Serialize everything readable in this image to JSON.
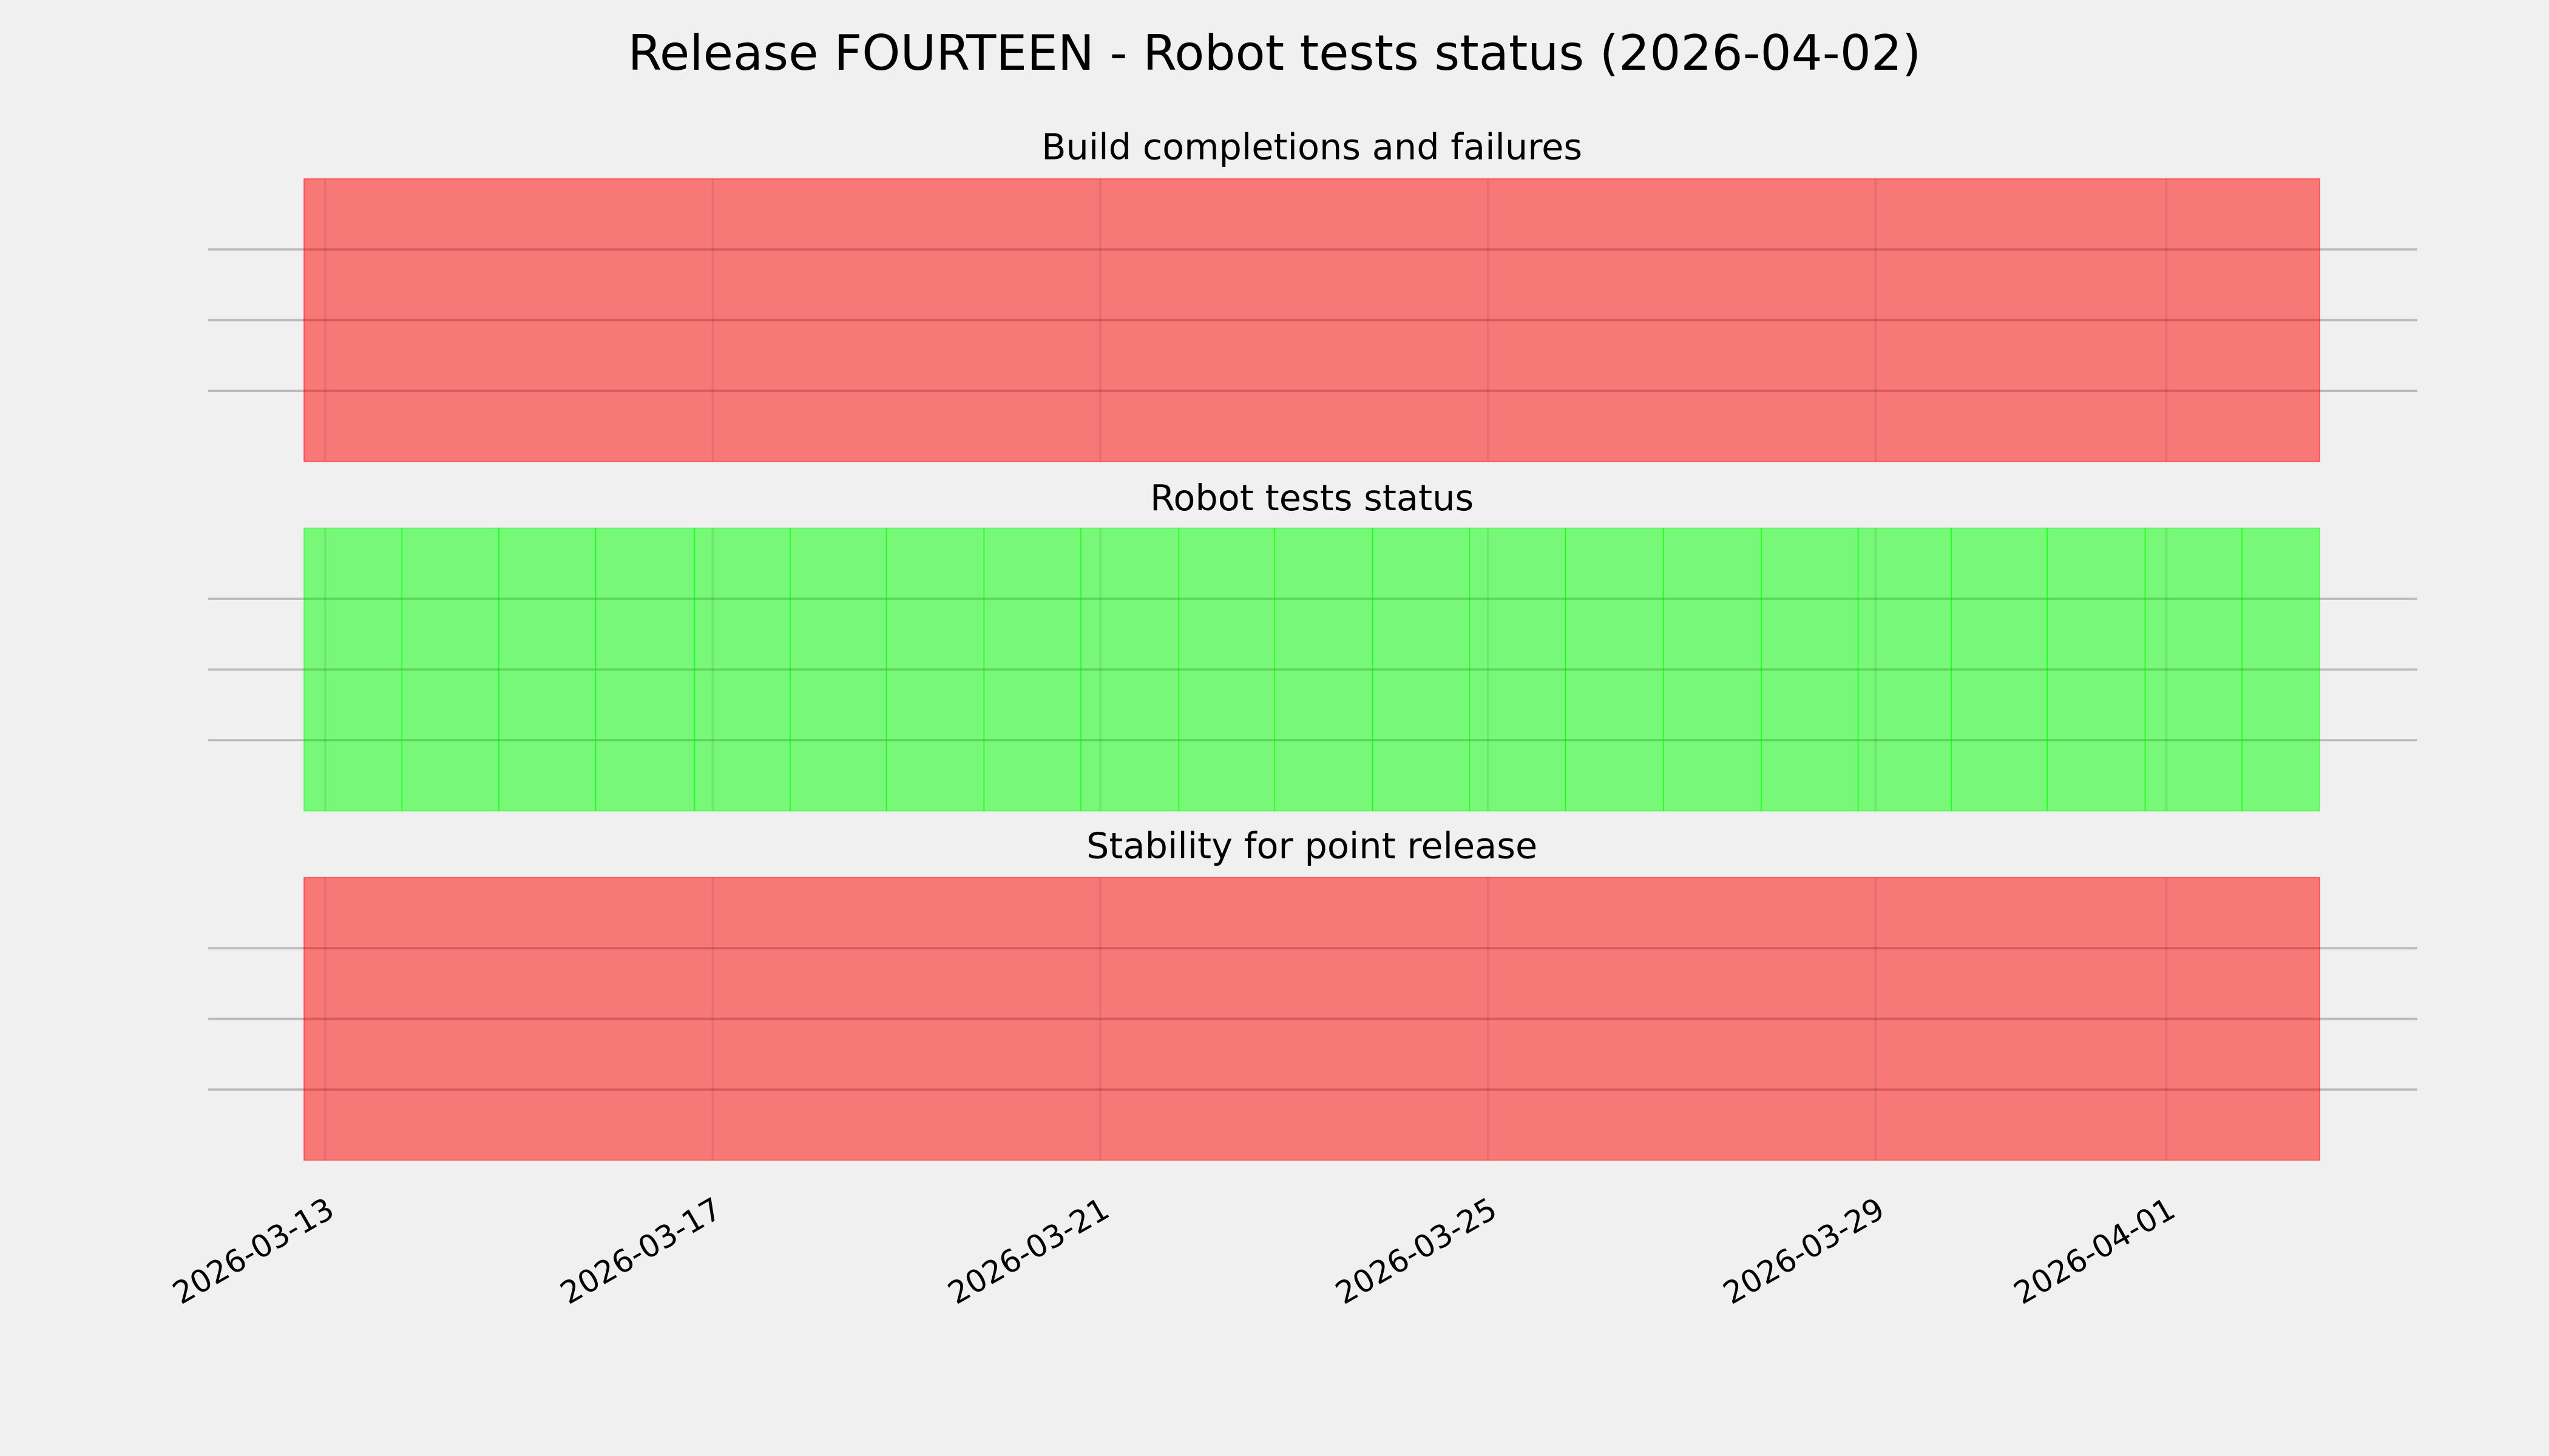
{
  "chart_data": {
    "type": "timeline-spans",
    "title": "Release FOURTEEN - Robot tests status (2026-04-02)",
    "xlim": [
      "2026-03-11T19:00",
      "2026-04-03T14:10"
    ],
    "ylim": [
      0,
      1
    ],
    "y_grid": [
      0.25,
      0.5,
      0.75
    ],
    "grid": true,
    "x_ticks": [
      {
        "date": "2026-03-13",
        "label": "2026-03-13"
      },
      {
        "date": "2026-03-17",
        "label": "2026-03-17"
      },
      {
        "date": "2026-03-21",
        "label": "2026-03-21"
      },
      {
        "date": "2026-03-25",
        "label": "2026-03-25"
      },
      {
        "date": "2026-03-29",
        "label": "2026-03-29"
      },
      {
        "date": "2026-04-01",
        "label": "2026-04-01"
      }
    ],
    "colors": {
      "fail": "#ff0000",
      "pass": "#00ff00",
      "background": "#f0f0f0",
      "grid": "#cbcbcb"
    },
    "panels": [
      {
        "title": "Build completions and failures",
        "spans": [
          {
            "start": "2026-03-12T18:45",
            "end": "2026-04-02T14:00",
            "status": "fail"
          }
        ]
      },
      {
        "title": "Robot tests status",
        "spans": [
          {
            "start": "2026-03-12T18:45",
            "end": "2026-03-13T19:00",
            "status": "pass"
          },
          {
            "start": "2026-03-13T19:00",
            "end": "2026-03-14T19:00",
            "status": "pass"
          },
          {
            "start": "2026-03-14T19:00",
            "end": "2026-03-15T19:00",
            "status": "pass"
          },
          {
            "start": "2026-03-15T19:00",
            "end": "2026-03-16T19:30",
            "status": "pass"
          },
          {
            "start": "2026-03-16T19:30",
            "end": "2026-03-17T19:10",
            "status": "pass"
          },
          {
            "start": "2026-03-17T19:10",
            "end": "2026-03-18T19:00",
            "status": "pass"
          },
          {
            "start": "2026-03-18T19:00",
            "end": "2026-03-19T19:10",
            "status": "pass"
          },
          {
            "start": "2026-03-19T19:10",
            "end": "2026-03-20T19:10",
            "status": "pass"
          },
          {
            "start": "2026-03-20T19:10",
            "end": "2026-03-21T19:25",
            "status": "pass"
          },
          {
            "start": "2026-03-21T19:25",
            "end": "2026-03-22T19:10",
            "status": "pass"
          },
          {
            "start": "2026-03-22T19:10",
            "end": "2026-03-23T19:25",
            "status": "pass"
          },
          {
            "start": "2026-03-23T19:25",
            "end": "2026-03-24T19:25",
            "status": "pass"
          },
          {
            "start": "2026-03-24T19:25",
            "end": "2026-03-25T19:10",
            "status": "pass"
          },
          {
            "start": "2026-03-25T19:10",
            "end": "2026-03-26T19:25",
            "status": "pass"
          },
          {
            "start": "2026-03-26T19:25",
            "end": "2026-03-27T19:40",
            "status": "pass"
          },
          {
            "start": "2026-03-27T19:40",
            "end": "2026-03-28T19:40",
            "status": "pass"
          },
          {
            "start": "2026-03-28T19:40",
            "end": "2026-03-29T18:45",
            "status": "pass"
          },
          {
            "start": "2026-03-29T18:45",
            "end": "2026-03-30T18:30",
            "status": "pass"
          },
          {
            "start": "2026-03-30T18:30",
            "end": "2026-03-31T18:45",
            "status": "pass"
          },
          {
            "start": "2026-03-31T18:45",
            "end": "2026-04-01T18:45",
            "status": "pass"
          },
          {
            "start": "2026-04-01T18:45",
            "end": "2026-04-02T14:00",
            "status": "pass"
          }
        ]
      },
      {
        "title": "Stability for point release",
        "spans": [
          {
            "start": "2026-03-12T18:45",
            "end": "2026-04-02T14:00",
            "status": "fail"
          }
        ]
      }
    ]
  }
}
